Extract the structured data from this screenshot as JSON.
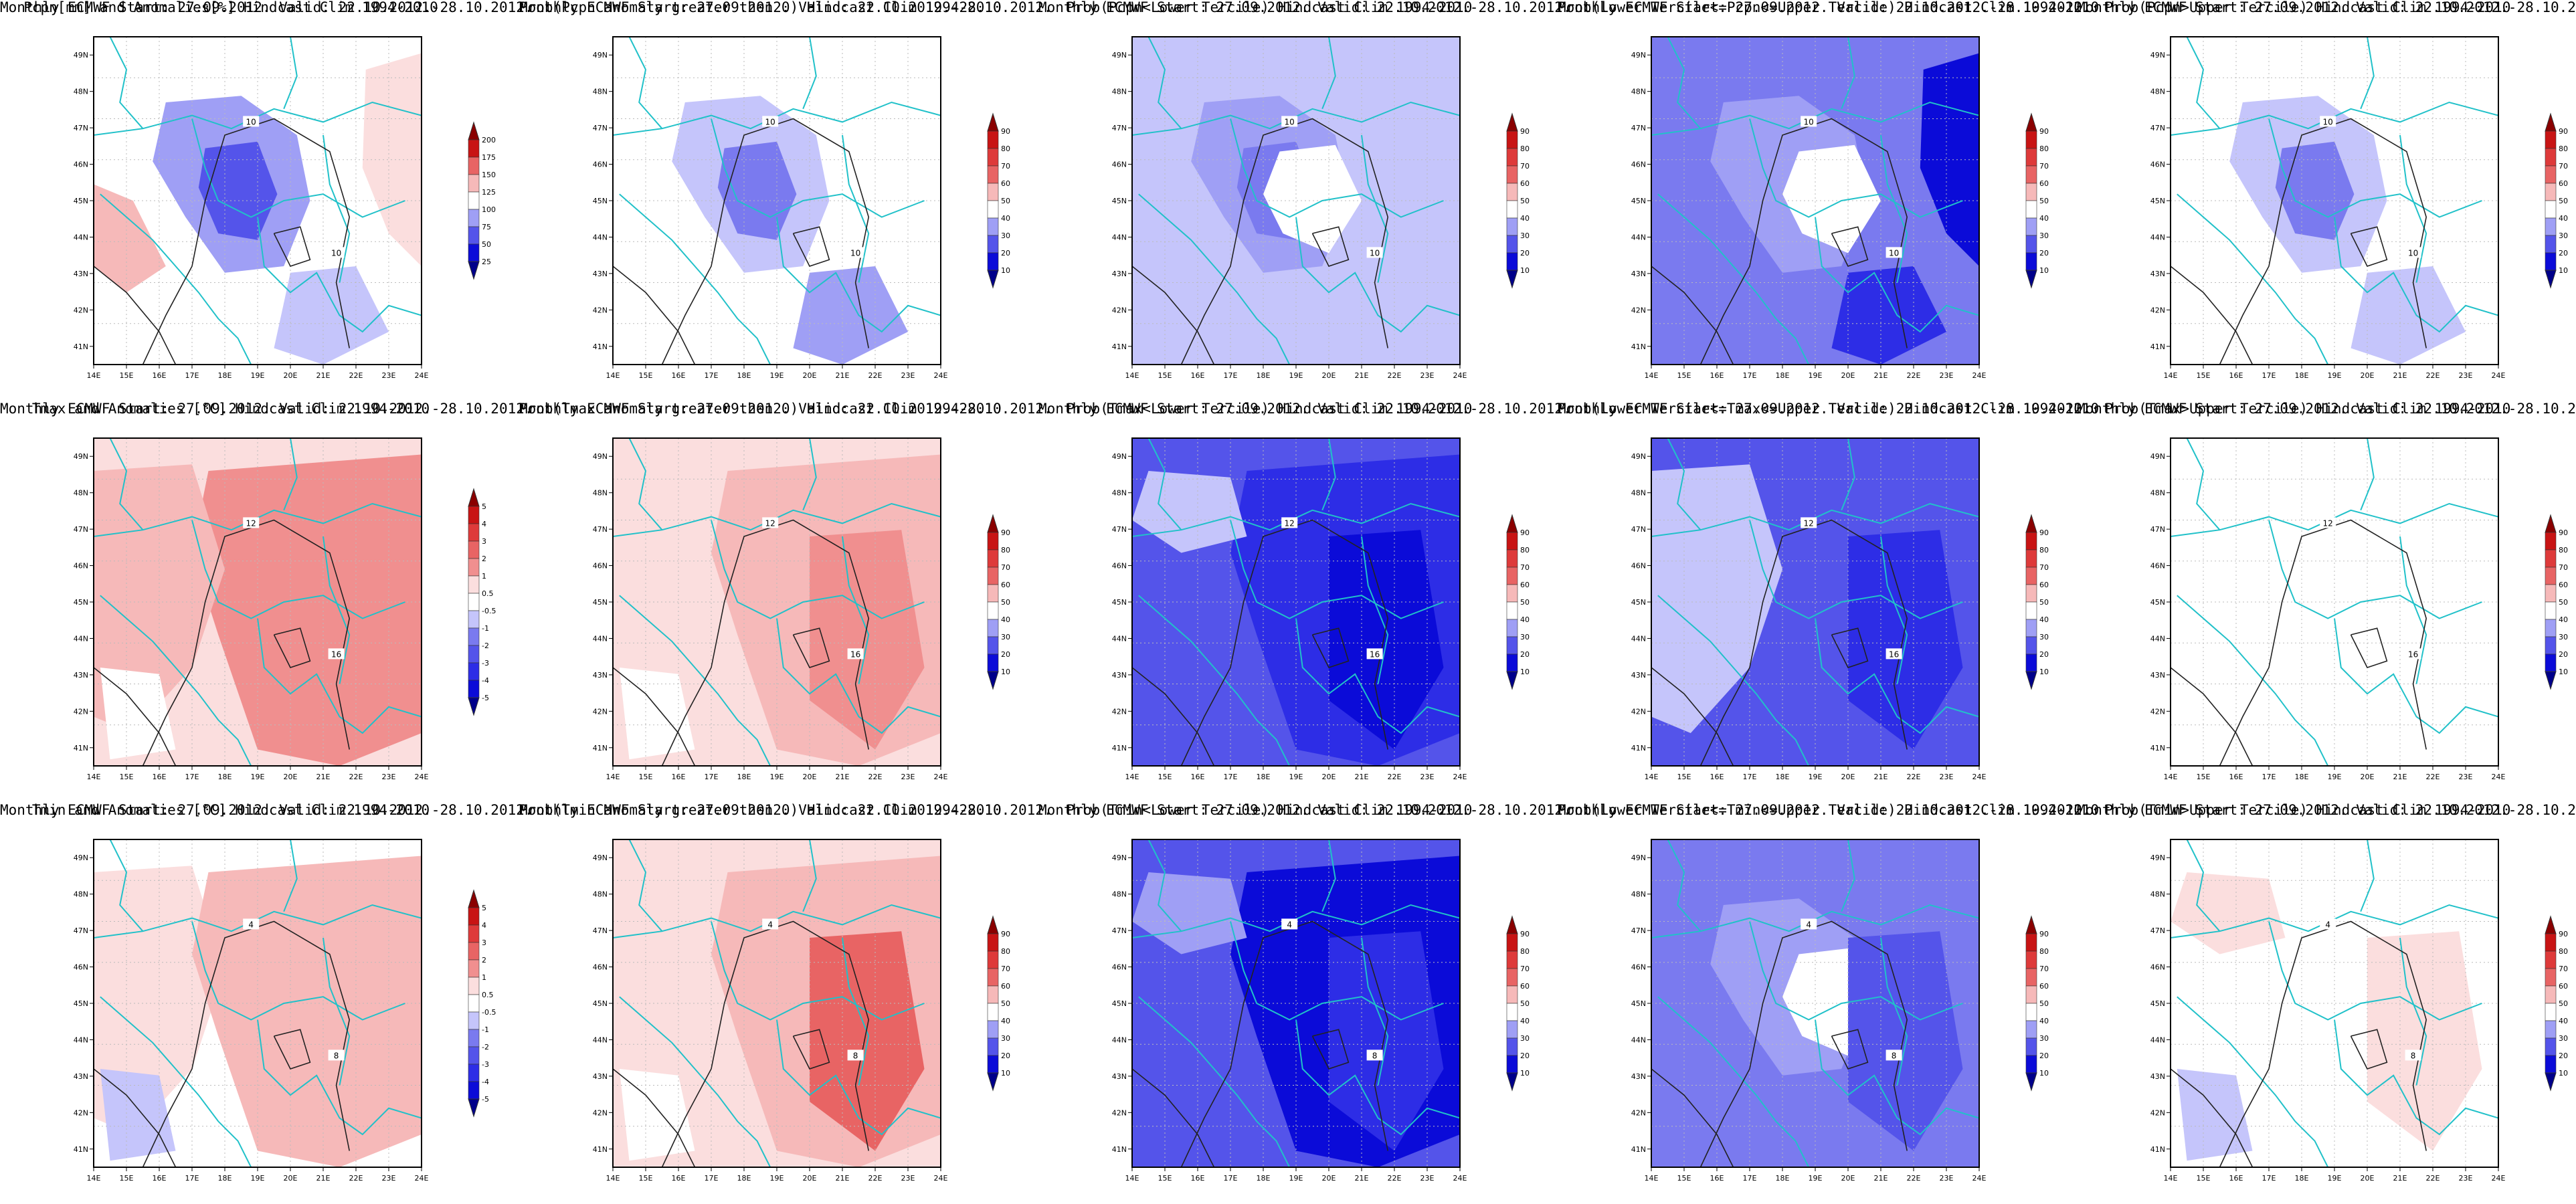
{
  "colors": {
    "coast": "#21c1c9",
    "contour": "#222222",
    "red": [
      "#fbdede",
      "#f6b9b9",
      "#f08f8f",
      "#e86464",
      "#de3a3a",
      "#c81414",
      "#8a0000"
    ],
    "blue": [
      "#c5c5fb",
      "#9f9ff5",
      "#7a7aef",
      "#5454ea",
      "#2d2de6",
      "#0b0bd8",
      "#00008a"
    ]
  },
  "common": {
    "line1": "Monthly ECMWF Start: 27.09.2012. Valid: 22.10.2012.-28.10.2012.",
    "lon_ticks": [
      "14E",
      "15E",
      "16E",
      "17E",
      "18E",
      "19E",
      "20E",
      "21E",
      "22E",
      "23E",
      "24E"
    ],
    "lat_ticks": [
      "49N",
      "48N",
      "47N",
      "46N",
      "45N",
      "44N",
      "43N",
      "42N",
      "41N"
    ]
  },
  "panels": [
    {
      "id": "r1c1",
      "title2": "Pcpn[mm] and Anomalies[%] Hindcast Clim 1994-2010",
      "bar": "div",
      "levels": [
        "25",
        "50",
        "75",
        "100",
        "125",
        "150",
        "175",
        "200"
      ],
      "contours": [
        "10",
        "10"
      ]
    },
    {
      "id": "r1c2",
      "title2": "Prob(Pcpn anomaly greater then 0) Hindcast Clim 1994-2010",
      "bar": "prob",
      "levels": [
        "10",
        "20",
        "30",
        "40",
        "50",
        "60",
        "70",
        "80",
        "90"
      ],
      "contours": [
        "10",
        "10"
      ]
    },
    {
      "id": "r1c3",
      "title2": "Prob(Pcpn<Lower Tercile) Hindcast Clim 1994-2010",
      "bar": "prob",
      "levels": [
        "10",
        "20",
        "30",
        "40",
        "50",
        "60",
        "70",
        "80",
        "90"
      ],
      "contours": [
        "10",
        "10"
      ]
    },
    {
      "id": "r1c4",
      "title2": "Prob(Lower Tercile<=Pcpn<=Upper Tercile) Hindcast Clim 1994-2010",
      "bar": "prob",
      "levels": [
        "10",
        "20",
        "30",
        "40",
        "50",
        "60",
        "70",
        "80",
        "90"
      ],
      "contours": [
        "10",
        "10"
      ]
    },
    {
      "id": "r1c5",
      "title2": "Prob(Pcpn>Upper Tercile) Hindcast Clim 1994-2010",
      "bar": "prob",
      "levels": [
        "10",
        "20",
        "30",
        "40",
        "50",
        "60",
        "70",
        "80",
        "90"
      ],
      "contours": [
        "10",
        "10"
      ]
    },
    {
      "id": "r2c1",
      "title2": "Tmax and Anomalies [°C] Hindcast Clim 1994-2010",
      "bar": "tmp",
      "levels": [
        "-5",
        "-4",
        "-3",
        "-2",
        "-1",
        "-0.5",
        "0.5",
        "1",
        "2",
        "3",
        "4",
        "5"
      ],
      "contours": [
        "12",
        "16"
      ]
    },
    {
      "id": "r2c2",
      "title2": "Prob(Tmax anomaly greater then 0) Hindcast Clim 1994-2010",
      "bar": "prob",
      "levels": [
        "10",
        "20",
        "30",
        "40",
        "50",
        "60",
        "70",
        "80",
        "90"
      ],
      "contours": [
        "12",
        "16"
      ]
    },
    {
      "id": "r2c3",
      "title2": "Prob(Tmax<Lower Tercile) Hindcast Clim 1994-2010",
      "bar": "prob",
      "levels": [
        "10",
        "20",
        "30",
        "40",
        "50",
        "60",
        "70",
        "80",
        "90"
      ],
      "contours": [
        "12",
        "16"
      ]
    },
    {
      "id": "r2c4",
      "title2": "Prob(Lower Tercile<=Tmax<=Upper Tercile) Hindcast Clim 1994-2010",
      "bar": "prob",
      "levels": [
        "10",
        "20",
        "30",
        "40",
        "50",
        "60",
        "70",
        "80",
        "90"
      ],
      "contours": [
        "12",
        "16"
      ]
    },
    {
      "id": "r2c5",
      "title2": "Prob(Tmax>Upper Tercile) Hindcast Clim 1994-2010",
      "bar": "prob",
      "levels": [
        "10",
        "20",
        "30",
        "40",
        "50",
        "60",
        "70",
        "80",
        "90"
      ],
      "contours": [
        "12",
        "16"
      ]
    },
    {
      "id": "r3c1",
      "title2": "Tmin and Anomalies [°C] Hindcast Clim 1994-2010",
      "bar": "tmp",
      "levels": [
        "-5",
        "-4",
        "-3",
        "-2",
        "-1",
        "-0.5",
        "0.5",
        "1",
        "2",
        "3",
        "4",
        "5"
      ],
      "contours": [
        "4",
        "8"
      ]
    },
    {
      "id": "r3c2",
      "title2": "Prob(Tmin anomaly greater then 0) Hindcast Clim 1994-2010",
      "bar": "prob",
      "levels": [
        "10",
        "20",
        "30",
        "40",
        "50",
        "60",
        "70",
        "80",
        "90"
      ],
      "contours": [
        "4",
        "8"
      ]
    },
    {
      "id": "r3c3",
      "title2": "Prob(Tmin<Lower Tercile) Hindcast Clim 1994-2010",
      "bar": "prob",
      "levels": [
        "10",
        "20",
        "30",
        "40",
        "50",
        "60",
        "70",
        "80",
        "90"
      ],
      "contours": [
        "4",
        "8"
      ]
    },
    {
      "id": "r3c4",
      "title2": "Prob(Lower Tercile<=Tmin<=Upper Tercile) Hindcast Clim 1994-2010",
      "bar": "prob",
      "levels": [
        "10",
        "20",
        "30",
        "40",
        "50",
        "60",
        "70",
        "80",
        "90"
      ],
      "contours": [
        "4",
        "8"
      ]
    },
    {
      "id": "r3c5",
      "title2": "Prob(Tmin>Upper Tercile) Hindcast Clim 1994-2010",
      "bar": "prob",
      "levels": [
        "10",
        "20",
        "30",
        "40",
        "50",
        "60",
        "70",
        "80",
        "90"
      ],
      "contours": [
        "4",
        "8"
      ]
    }
  ]
}
